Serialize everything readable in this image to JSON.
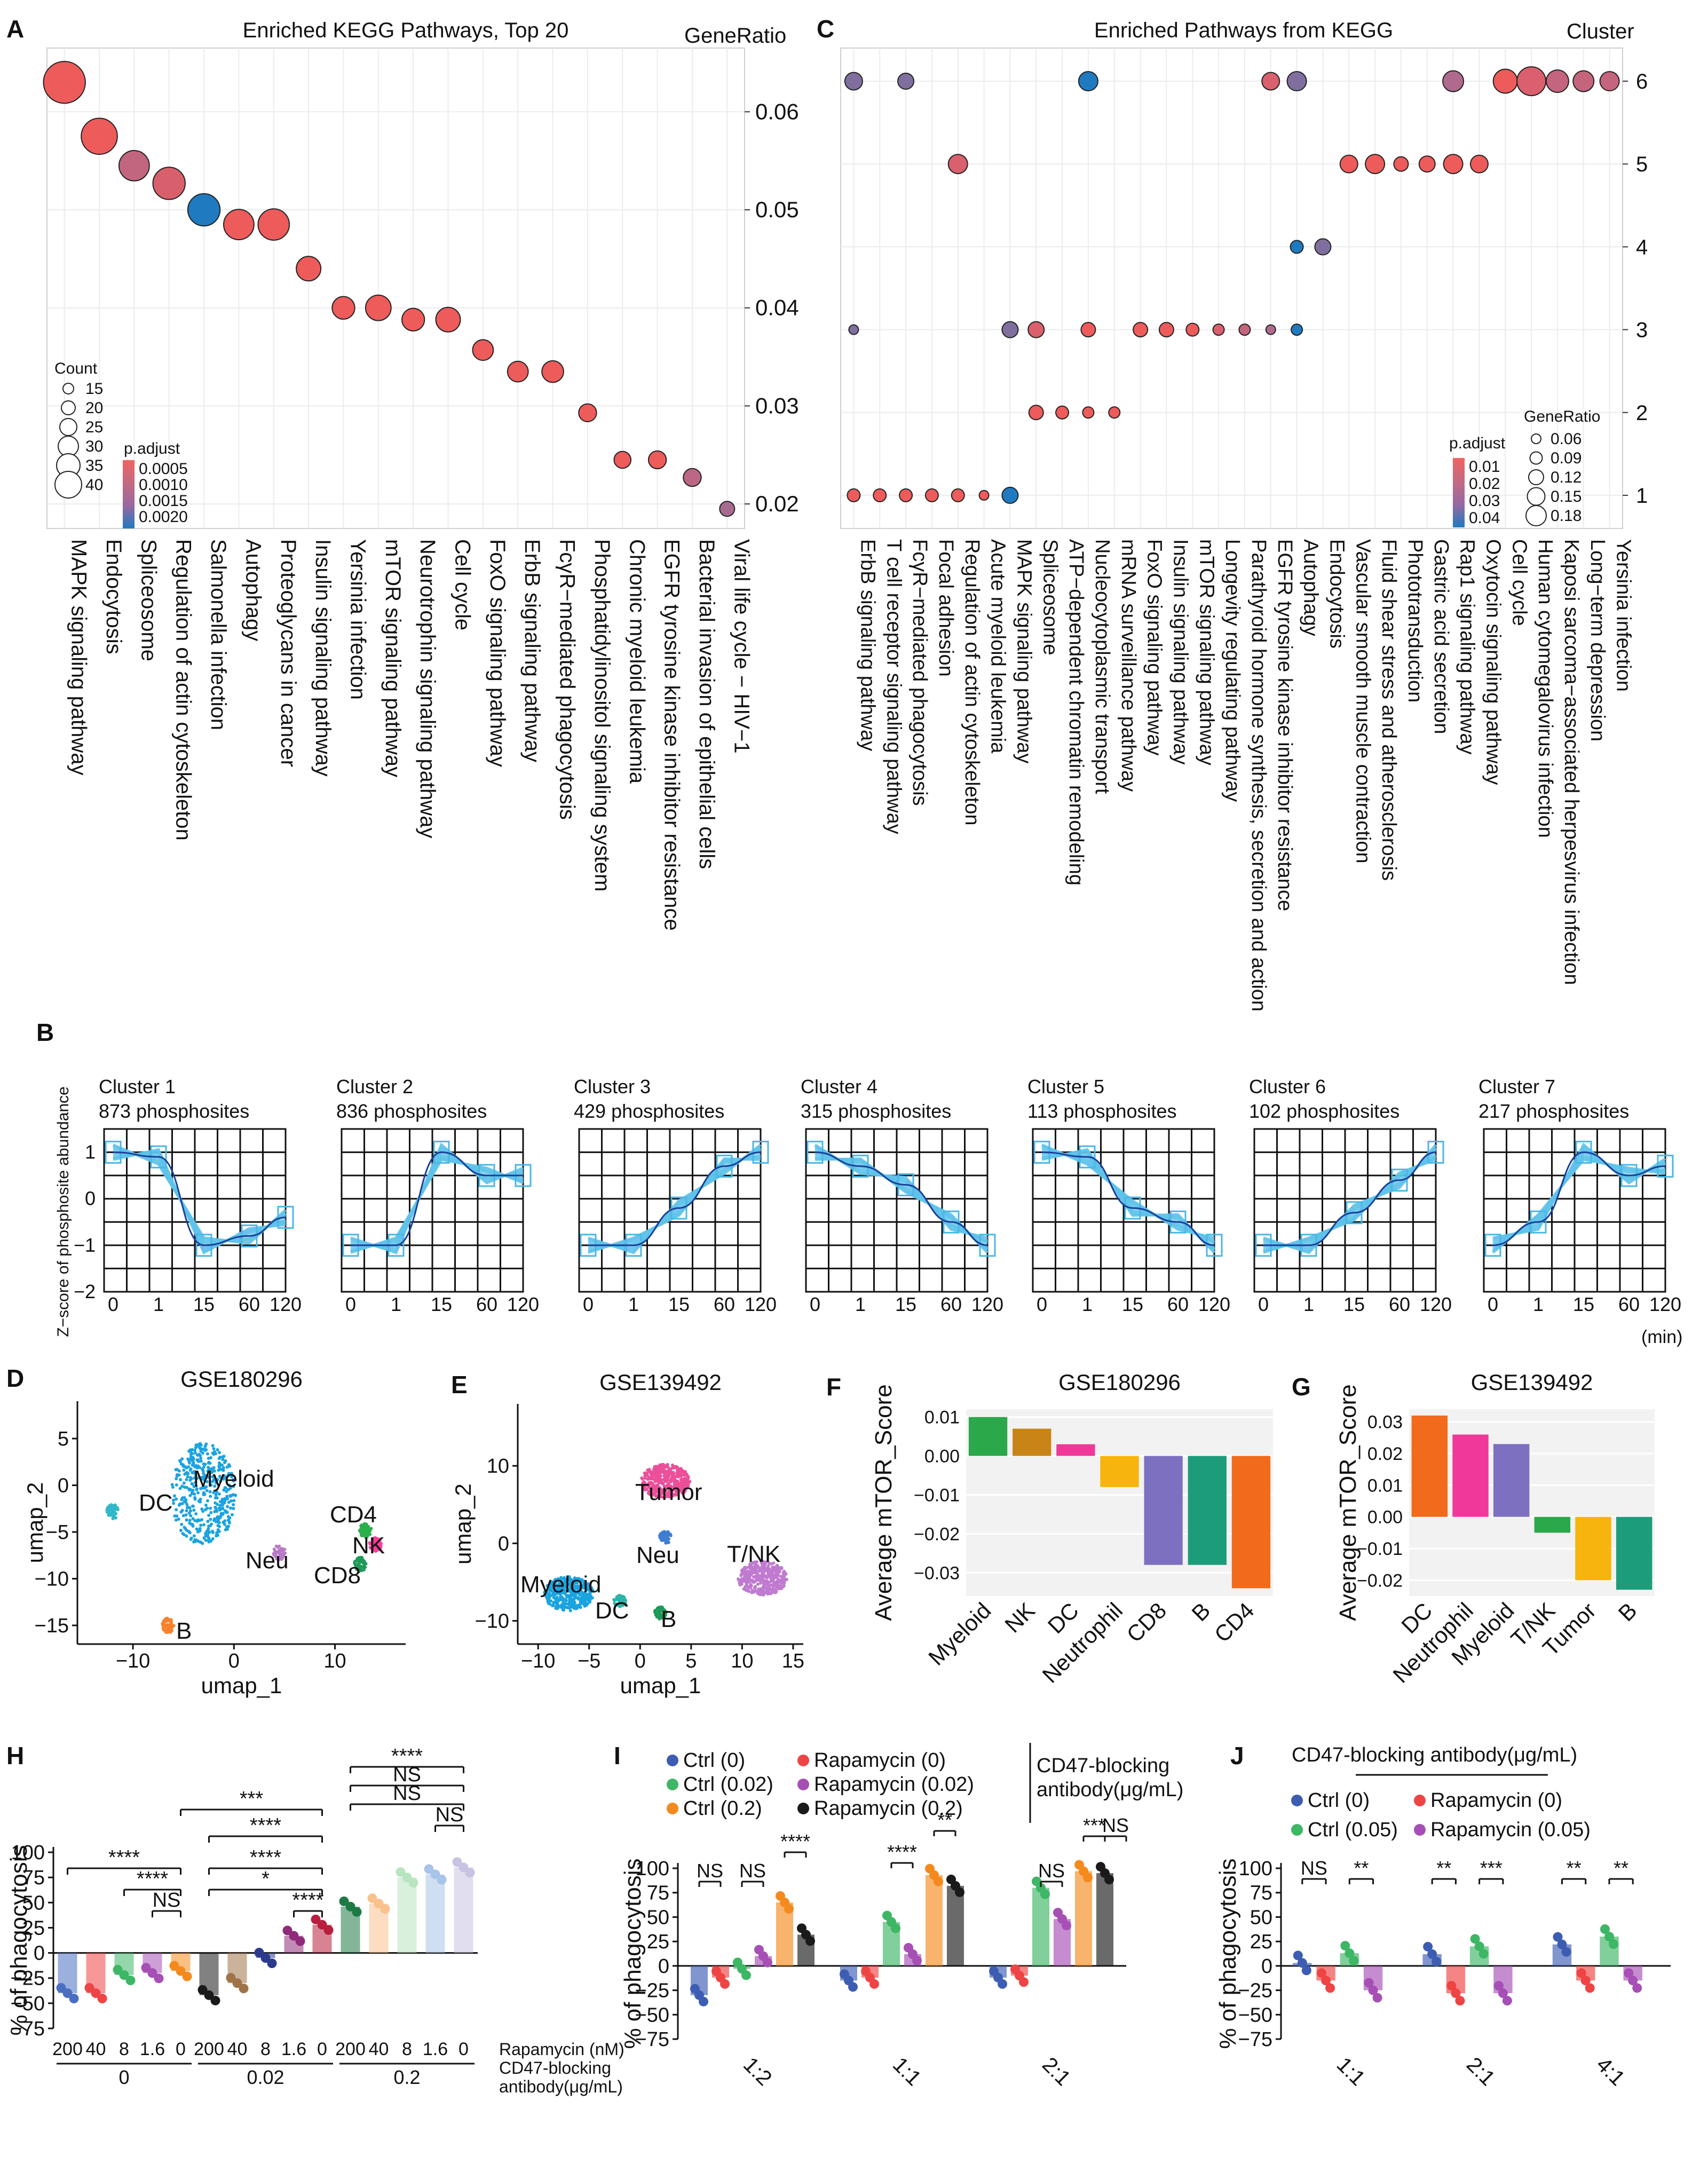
{
  "panel_letters": {
    "A": "A",
    "B": "B",
    "C": "C",
    "D": "D",
    "E": "E",
    "F": "F",
    "G": "G",
    "H": "H",
    "I": "I",
    "J": "J"
  },
  "chart_data": [
    {
      "id": "A",
      "type": "scatter",
      "title": "Enriched KEGG Pathways, Top 20",
      "ylabel": "GeneRatio",
      "categories": [
        "MAPK signaling pathway",
        "Endocytosis",
        "Spliceosome",
        "Regulation of actin cytoskeleton",
        "Salmonella infection",
        "Autophagy",
        "Proteoglycans in cancer",
        "Insulin signaling pathway",
        "Yersinia infection",
        "mTOR signaling pathway",
        "Neurotrophin signaling pathway",
        "Cell cycle",
        "FoxO signaling pathway",
        "ErbB signaling pathway",
        "FcγR−mediated phagocytosis",
        "Phosphatidylinositol signaling system",
        "Chronic myeloid leukemia",
        "EGFR tyrosine kinase inhibitor resistance",
        "Bacterial invasion of epithelial cells",
        "Viral life cycle − HIV−1"
      ],
      "values": [
        0.063,
        0.0575,
        0.0545,
        0.0527,
        0.05,
        0.0485,
        0.0485,
        0.044,
        0.04,
        0.04,
        0.0388,
        0.0388,
        0.0357,
        0.0335,
        0.0335,
        0.0293,
        0.0245,
        0.0245,
        0.0227,
        0.0195
      ],
      "count": [
        40,
        34,
        28,
        30,
        30,
        28,
        29,
        22,
        20,
        23,
        20,
        22,
        18,
        18,
        19,
        15,
        14,
        15,
        15,
        12
      ],
      "p_adjust": [
        0.0003,
        0.0003,
        0.0009,
        0.0006,
        0.002,
        0.0003,
        0.0003,
        0.0003,
        0.0003,
        0.0003,
        0.0003,
        0.0003,
        0.0003,
        0.0003,
        0.0003,
        0.0003,
        0.0003,
        0.0003,
        0.001,
        0.0012
      ],
      "yticks": [
        0.02,
        0.03,
        0.04,
        0.05,
        0.06
      ],
      "ylim": [
        0.0175,
        0.0665
      ],
      "legend": {
        "count_title": "Count",
        "count_values": [
          15,
          20,
          25,
          30,
          35,
          40
        ],
        "color_title": "p.adjust",
        "color_labels": [
          "0.0005",
          "0.0010",
          "0.0015",
          "0.0020"
        ]
      }
    },
    {
      "id": "C",
      "type": "scatter",
      "title": "Enriched Pathways from KEGG",
      "ylabel": "Cluster",
      "categories": [
        "ErbB signaling pathway",
        "T cell receptor signaling pathway",
        "FcγR−mediated phagocytosis",
        "Focal adhesion",
        "Regulation of actin cytoskeleton",
        "Acute myeloid leukemia",
        "MAPK signaling pathway",
        "Spliceosome",
        "ATP−dependent chromatin remodeling",
        "Nucleocytoplasmic transport",
        "mRNA surveillance pathway",
        "FoxO signaling pathway",
        "Insulin signaling pathway",
        "mTOR signaling pathway",
        "Longevity regulating pathway",
        "Parathyroid hormone synthesis, secretion and action",
        "EGFR tyrosine kinase inhibitor resistance",
        "Autophagy",
        "Endocytosis",
        "Vascular smooth muscle contraction",
        "Fluid shear stress and atherosclerosis",
        "Phototransduction",
        "Gastric acid secretion",
        "Rap1 signaling pathway",
        "Oxytocin signaling pathway",
        "Cell cycle",
        "Human cytomegalovirus infection",
        "Kaposi sarcoma−associated herpesvirus infection",
        "Long−term depression",
        "Yersinia infection"
      ],
      "points": [
        {
          "x": 0,
          "y": 1,
          "r": 0.08,
          "p": 0.01
        },
        {
          "x": 1,
          "y": 1,
          "r": 0.08,
          "p": 0.01
        },
        {
          "x": 2,
          "y": 1,
          "r": 0.08,
          "p": 0.01
        },
        {
          "x": 3,
          "y": 1,
          "r": 0.08,
          "p": 0.01
        },
        {
          "x": 4,
          "y": 1,
          "r": 0.08,
          "p": 0.01
        },
        {
          "x": 5,
          "y": 1,
          "r": 0.06,
          "p": 0.01
        },
        {
          "x": 6,
          "y": 1,
          "r": 0.1,
          "p": 0.04
        },
        {
          "x": 0,
          "y": 3,
          "r": 0.06,
          "p": 0.03
        },
        {
          "x": 6,
          "y": 3,
          "r": 0.1,
          "p": 0.03
        },
        {
          "x": 7,
          "y": 3,
          "r": 0.1,
          "p": 0.015
        },
        {
          "x": 9,
          "y": 3,
          "r": 0.09,
          "p": 0.01
        },
        {
          "x": 11,
          "y": 3,
          "r": 0.09,
          "p": 0.01
        },
        {
          "x": 12,
          "y": 3,
          "r": 0.09,
          "p": 0.01
        },
        {
          "x": 13,
          "y": 3,
          "r": 0.08,
          "p": 0.01
        },
        {
          "x": 14,
          "y": 3,
          "r": 0.07,
          "p": 0.015
        },
        {
          "x": 15,
          "y": 3,
          "r": 0.07,
          "p": 0.02
        },
        {
          "x": 16,
          "y": 3,
          "r": 0.06,
          "p": 0.025
        },
        {
          "x": 17,
          "y": 3,
          "r": 0.07,
          "p": 0.04
        },
        {
          "x": 7,
          "y": 2,
          "r": 0.09,
          "p": 0.01
        },
        {
          "x": 8,
          "y": 2,
          "r": 0.08,
          "p": 0.01
        },
        {
          "x": 9,
          "y": 2,
          "r": 0.07,
          "p": 0.01
        },
        {
          "x": 10,
          "y": 2,
          "r": 0.07,
          "p": 0.01
        },
        {
          "x": 4,
          "y": 5,
          "r": 0.12,
          "p": 0.015
        },
        {
          "x": 17,
          "y": 4,
          "r": 0.08,
          "p": 0.04
        },
        {
          "x": 18,
          "y": 4,
          "r": 0.1,
          "p": 0.03
        },
        {
          "x": 19,
          "y": 5,
          "r": 0.11,
          "p": 0.01
        },
        {
          "x": 20,
          "y": 5,
          "r": 0.12,
          "p": 0.01
        },
        {
          "x": 21,
          "y": 5,
          "r": 0.09,
          "p": 0.01
        },
        {
          "x": 22,
          "y": 5,
          "r": 0.1,
          "p": 0.01
        },
        {
          "x": 23,
          "y": 5,
          "r": 0.12,
          "p": 0.01
        },
        {
          "x": 24,
          "y": 5,
          "r": 0.11,
          "p": 0.01
        },
        {
          "x": 0,
          "y": 6,
          "r": 0.11,
          "p": 0.03
        },
        {
          "x": 2,
          "y": 6,
          "r": 0.1,
          "p": 0.03
        },
        {
          "x": 9,
          "y": 6,
          "r": 0.12,
          "p": 0.04
        },
        {
          "x": 16,
          "y": 6,
          "r": 0.11,
          "p": 0.015
        },
        {
          "x": 17,
          "y": 6,
          "r": 0.12,
          "p": 0.03
        },
        {
          "x": 23,
          "y": 6,
          "r": 0.13,
          "p": 0.025
        },
        {
          "x": 25,
          "y": 6,
          "r": 0.15,
          "p": 0.01
        },
        {
          "x": 26,
          "y": 6,
          "r": 0.18,
          "p": 0.015
        },
        {
          "x": 27,
          "y": 6,
          "r": 0.14,
          "p": 0.02
        },
        {
          "x": 28,
          "y": 6,
          "r": 0.13,
          "p": 0.02
        },
        {
          "x": 29,
          "y": 6,
          "r": 0.12,
          "p": 0.02
        }
      ],
      "yticks": [
        1,
        2,
        3,
        4,
        5,
        6
      ],
      "ylim": [
        0.6,
        6.4
      ],
      "legend": {
        "color_title": "p.adjust",
        "color_labels": [
          "0.01",
          "0.02",
          "0.03",
          "0.04"
        ],
        "size_title": "GeneRatio",
        "size_values": [
          "0.06",
          "0.09",
          "0.12",
          "0.15",
          "0.18"
        ]
      }
    },
    {
      "id": "B",
      "type": "line",
      "ylabel": "Z−score of phosphosite abundance",
      "xticks": [
        "0",
        "1",
        "15",
        "60",
        "120"
      ],
      "xunit": "(min)",
      "yticks": [
        -2,
        -1,
        0,
        1
      ],
      "ylim": [
        -2,
        1.5
      ],
      "series": [
        {
          "name": "Cluster 1",
          "count_label": "873 phosphosites",
          "values": [
            1.0,
            0.9,
            -1.0,
            -0.8,
            -0.4
          ]
        },
        {
          "name": "Cluster 2",
          "count_label": "836 phosphosites",
          "values": [
            -1.0,
            -1.0,
            1.0,
            0.5,
            0.5
          ]
        },
        {
          "name": "Cluster 3",
          "count_label": "429 phosphosites",
          "values": [
            -1.0,
            -1.0,
            -0.2,
            0.7,
            1.0
          ]
        },
        {
          "name": "Cluster 4",
          "count_label": "315 phosphosites",
          "values": [
            1.0,
            0.7,
            0.3,
            -0.5,
            -1.0
          ]
        },
        {
          "name": "Cluster 5",
          "count_label": "113 phosphosites",
          "values": [
            1.0,
            0.9,
            -0.2,
            -0.5,
            -1.0
          ]
        },
        {
          "name": "Cluster 6",
          "count_label": "102 phosphosites",
          "values": [
            -1.0,
            -1.0,
            -0.3,
            0.4,
            1.0
          ]
        },
        {
          "name": "Cluster 7",
          "count_label": "217 phosphosites",
          "values": [
            -1.0,
            -0.5,
            1.0,
            0.5,
            0.7
          ]
        }
      ]
    },
    {
      "id": "D",
      "type": "scatter",
      "title": "GSE180296",
      "xlabel": "umap_1",
      "ylabel": "umap_2",
      "xticks": [
        -10,
        0,
        10
      ],
      "yticks": [
        -15,
        -10,
        -5,
        0,
        5
      ],
      "xlim": [
        -15.5,
        17
      ],
      "ylim": [
        -17,
        9
      ],
      "clusters": [
        {
          "name": "Myeloid",
          "cx": -3,
          "cy": -1,
          "color": "#1aa3e0"
        },
        {
          "name": "DC",
          "cx": -12,
          "cy": -2.8,
          "color": "#31b8c8"
        },
        {
          "name": "Neu",
          "cx": 4.5,
          "cy": -7.2,
          "color": "#b77ac6"
        },
        {
          "name": "CD4",
          "cx": 13,
          "cy": -4.8,
          "color": "#2bb04a"
        },
        {
          "name": "NK",
          "cx": 14,
          "cy": -6.4,
          "color": "#ff3d9a"
        },
        {
          "name": "CD8",
          "cx": 12.5,
          "cy": -8.5,
          "color": "#1d9a58"
        },
        {
          "name": "B",
          "cx": -6.5,
          "cy": -15,
          "color": "#f7812d"
        }
      ]
    },
    {
      "id": "E",
      "type": "scatter",
      "title": "GSE139492",
      "xlabel": "umap_1",
      "ylabel": "umap_2",
      "xticks": [
        -10,
        -5,
        0,
        5,
        10,
        15
      ],
      "yticks": [
        -10,
        0,
        10
      ],
      "xlim": [
        -12,
        16
      ],
      "ylim": [
        -13,
        18
      ],
      "clusters": [
        {
          "name": "Tumor",
          "cx": 2.5,
          "cy": 8,
          "color": "#ec4f9a"
        },
        {
          "name": "Neu",
          "cx": 2.5,
          "cy": 0.8,
          "color": "#3f7dd0"
        },
        {
          "name": "T/NK",
          "cx": 12,
          "cy": -4.5,
          "color": "#c07ad0"
        },
        {
          "name": "Myeloid",
          "cx": -7,
          "cy": -6.5,
          "color": "#1aa3e0"
        },
        {
          "name": "DC",
          "cx": -2,
          "cy": -7.5,
          "color": "#2cb4a8"
        },
        {
          "name": "B",
          "cx": 2,
          "cy": -9,
          "color": "#1d9a58"
        }
      ]
    },
    {
      "id": "F",
      "type": "bar",
      "title": "GSE180296",
      "ylabel": "Average mTOR_Score",
      "categories": [
        "Myeloid",
        "NK",
        "DC",
        "Neutrophil",
        "CD8",
        "B",
        "CD4"
      ],
      "values": [
        0.01,
        0.007,
        0.003,
        -0.008,
        -0.028,
        -0.028,
        -0.034
      ],
      "colors": [
        "#2ba84a",
        "#c98417",
        "#f0389a",
        "#f7b40c",
        "#7e70c0",
        "#1d9c7a",
        "#f26a1b"
      ],
      "yticks": [
        -0.03,
        -0.02,
        -0.01,
        0.0,
        0.01
      ],
      "ylim": [
        -0.036,
        0.012
      ]
    },
    {
      "id": "G",
      "type": "bar",
      "title": "GSE139492",
      "ylabel": "Average mTOR_Score",
      "categories": [
        "DC",
        "Neutrophil",
        "Myeloid",
        "T/NK",
        "Tumor",
        "B"
      ],
      "values": [
        0.032,
        0.026,
        0.023,
        -0.005,
        -0.02,
        -0.023
      ],
      "colors": [
        "#f26a1b",
        "#f0389a",
        "#7e70c0",
        "#2ba84a",
        "#f7b40c",
        "#1d9c7a"
      ],
      "yticks": [
        -0.02,
        -0.01,
        0.0,
        0.01,
        0.02,
        0.03
      ],
      "ylim": [
        -0.025,
        0.034
      ]
    },
    {
      "id": "H",
      "type": "bar",
      "ylabel": "% of phagocytosis",
      "yticks": [
        -75,
        -50,
        -25,
        0,
        25,
        50,
        75,
        100
      ],
      "ylim": [
        -75,
        100
      ],
      "xlabel_rows": [
        "Rapamycin (nM)",
        "CD47-blocking",
        "antibody(μg/mL)"
      ],
      "group_labels": [
        "0",
        "0.02",
        "0.2"
      ],
      "bar_labels": [
        "200",
        "40",
        "8",
        "1.6",
        "0",
        "200",
        "40",
        "8",
        "1.6",
        "0",
        "200",
        "40",
        "8",
        "1.6",
        "0"
      ],
      "values": [
        -40,
        -40,
        -22,
        -20,
        -18,
        -42,
        -30,
        -5,
        17,
        28,
        46,
        49,
        75,
        78,
        85
      ],
      "colors": [
        "#4a6fc2",
        "#ef4444",
        "#3db665",
        "#a64fb5",
        "#f48a1e",
        "#1a1a1a",
        "#a07248",
        "#2b3a8c",
        "#8f2b7a",
        "#b81e3d",
        "#1d7a45",
        "#f9c18e",
        "#b9e4c0",
        "#a8c4e8",
        "#c9c3e3"
      ],
      "brackets": [
        "****",
        "***",
        "NS",
        "NS",
        "****",
        "****",
        "****",
        "*",
        "****",
        "****",
        "NS",
        "NS"
      ]
    },
    {
      "id": "I",
      "type": "bar",
      "ylabel": "% of phagocytosis",
      "yticks": [
        -75,
        -50,
        -25,
        0,
        25,
        50,
        75,
        100
      ],
      "ylim": [
        -75,
        100
      ],
      "categories": [
        "1:2",
        "1:1",
        "2:1"
      ],
      "legend_title": [
        "CD47-blocking",
        "antibody(μg/mL)"
      ],
      "series": [
        {
          "name": "Ctrl (0)",
          "color": "#3d5db3",
          "values": [
            -30,
            -15,
            -12
          ]
        },
        {
          "name": "Rapamycin (0)",
          "color": "#ef4444",
          "values": [
            -12,
            -12,
            -10
          ]
        },
        {
          "name": "Ctrl (0.02)",
          "color": "#3db665",
          "values": [
            -3,
            45,
            80
          ]
        },
        {
          "name": "Rapamycin (0.02)",
          "color": "#a64fb5",
          "values": [
            10,
            12,
            48
          ]
        },
        {
          "name": "Ctrl (0.2)",
          "color": "#f48a1e",
          "values": [
            65,
            93,
            97
          ]
        },
        {
          "name": "Rapamycin (0.2)",
          "color": "#1a1a1a",
          "values": [
            32,
            82,
            95
          ]
        }
      ],
      "stats": [
        "NS",
        "NS",
        "****",
        "****",
        "**",
        "NS",
        "***",
        "NS"
      ]
    },
    {
      "id": "J",
      "type": "bar",
      "ylabel": "% of phagocytosis",
      "yticks": [
        -75,
        -50,
        -25,
        0,
        25,
        50,
        75,
        100
      ],
      "ylim": [
        -75,
        100
      ],
      "categories": [
        "1:1",
        "2:1",
        "4:1"
      ],
      "legend_title": "CD47-blocking antibody(μg/mL)",
      "series": [
        {
          "name": "Ctrl (0)",
          "color": "#3d5db3",
          "values": [
            3,
            12,
            22
          ]
        },
        {
          "name": "Rapamycin (0)",
          "color": "#ef4444",
          "values": [
            -15,
            -28,
            -15
          ]
        },
        {
          "name": "Ctrl (0.05)",
          "color": "#3db665",
          "values": [
            13,
            20,
            30
          ]
        },
        {
          "name": "Rapamycin (0.05)",
          "color": "#a64fb5",
          "values": [
            -25,
            -28,
            -15
          ]
        }
      ],
      "stats": [
        "NS",
        "**",
        "**",
        "***",
        "**",
        "**"
      ]
    }
  ]
}
